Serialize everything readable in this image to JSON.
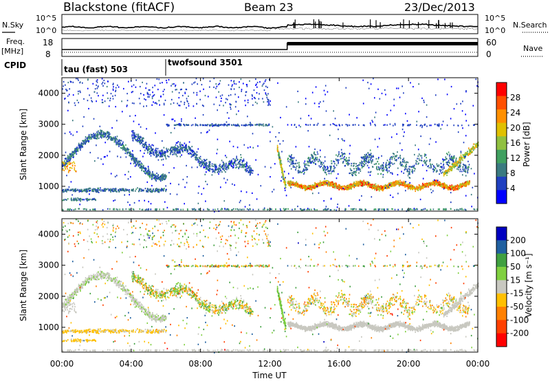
{
  "header": {
    "station": "Blackstone (fitACF)",
    "beam": "Beam 23",
    "date": "23/Dec/2013"
  },
  "noise_panel": {
    "left_label": "N.Sky",
    "right_label": "N.Search",
    "left_ticks": [
      "10^5",
      "10^0"
    ],
    "right_ticks": [
      "10^5",
      "10^0"
    ]
  },
  "freq_panel": {
    "left_label_1": "Freq.",
    "left_label_2": "[MHz]",
    "left_ticks": [
      "18",
      "8"
    ],
    "right_label": "Nave",
    "right_ticks": [
      "60",
      "0"
    ]
  },
  "cpid": {
    "label": "CPID",
    "modes": [
      {
        "name": "tau (fast) 503",
        "start_hour": 0
      },
      {
        "name": "twofsound 3501",
        "start_hour": 6
      }
    ]
  },
  "colors": {
    "scale": [
      "#0000ff",
      "#2040c0",
      "#3a7a80",
      "#40a060",
      "#90c040",
      "#e0c000",
      "#ff9000",
      "#ff5000",
      "#ff0000"
    ],
    "velocity_scale": [
      "#0000c0",
      "#2060a0",
      "#40a040",
      "#80d040",
      "#c8c8c0",
      "#ffc000",
      "#ff8000",
      "#ff4000",
      "#ff0000"
    ]
  },
  "chart_data": [
    {
      "type": "heatmap",
      "name": "power",
      "ylabel": "Slant Range [km]",
      "yticks": [
        "1000",
        "2000",
        "3000",
        "4000"
      ],
      "ylim": [
        200,
        4500
      ],
      "colorbar_label": "Power [dB]",
      "colorbar_ticks": [
        "4",
        "8",
        "12",
        "16",
        "20",
        "24",
        "28"
      ],
      "colorbar_range": [
        0,
        32
      ]
    },
    {
      "type": "heatmap",
      "name": "velocity",
      "ylabel": "Slant Range [km]",
      "yticks": [
        "1000",
        "2000",
        "3000",
        "4000"
      ],
      "ylim": [
        200,
        4500
      ],
      "colorbar_label": "Velocity [m s⁻¹]",
      "colorbar_ticks": [
        "200",
        "100",
        "50",
        "15",
        "-15",
        "-50",
        "-100",
        "-200"
      ],
      "colorbar_range": [
        -250,
        250
      ]
    }
  ],
  "x_axis": {
    "label": "Time UT",
    "ticks": [
      "00:00",
      "04:00",
      "08:00",
      "12:00",
      "16:00",
      "20:00",
      "00:00"
    ],
    "range_hours": [
      0,
      24
    ]
  }
}
